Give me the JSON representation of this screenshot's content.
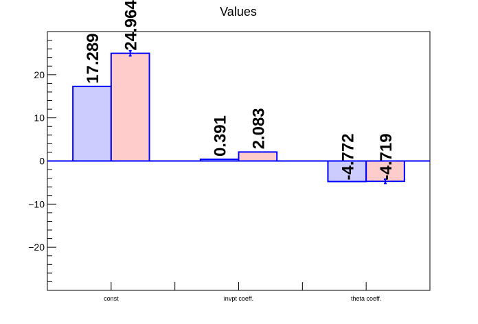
{
  "chart_data": {
    "type": "bar",
    "title": "Values",
    "categories": [
      "const",
      "invpt coeff.",
      "theta coeff."
    ],
    "series": [
      {
        "values": [
          17.289,
          0.391,
          -4.772
        ],
        "errors": [
          0,
          0,
          0
        ],
        "labels": [
          "17.289",
          "0.391",
          "-4.772"
        ]
      },
      {
        "values": [
          24.964,
          2.083,
          -4.719
        ],
        "errors": [
          0.6,
          0,
          0.5
        ],
        "labels": [
          "24.964",
          "2.083",
          "-4.719"
        ]
      }
    ],
    "ylim": [
      -30,
      30
    ],
    "yticks": [
      -20,
      -10,
      0,
      10,
      20
    ],
    "ytick_labels": [
      "−20",
      "−10",
      "0",
      "10",
      "20"
    ],
    "xlabel": "",
    "ylabel": "",
    "grid": false,
    "colors": {
      "series_fill": [
        "#ccccff",
        "#ffcccc"
      ],
      "edge": "#0000ff",
      "axis": "#000000"
    }
  }
}
